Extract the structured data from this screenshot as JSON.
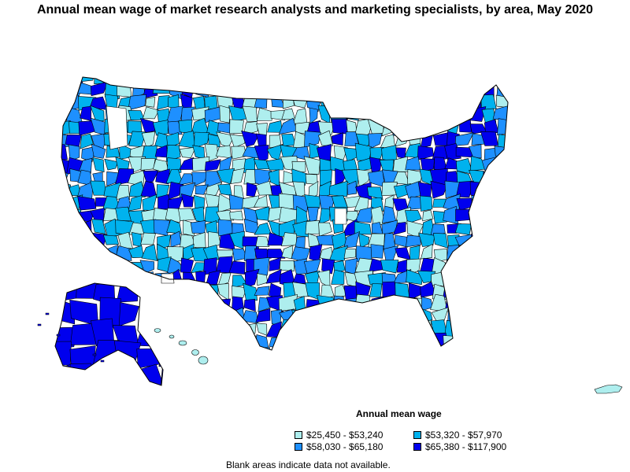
{
  "title": "Annual mean wage of market research analysts and marketing specialists, by area, May 2020",
  "legend": {
    "title": "Annual mean wage",
    "items": [
      {
        "label": "$25,450 - $53,240",
        "color": "#aeeeee"
      },
      {
        "label": "$53,320 - $57,970",
        "color": "#00b2ee"
      },
      {
        "label": "$58,030 - $65,180",
        "color": "#1e90ff"
      },
      {
        "label": "$65,380 - $117,900",
        "color": "#0000ee"
      }
    ]
  },
  "footnote": "Blank areas indicate data not available.",
  "colors": {
    "no_data": "#ffffff",
    "border": "#000000"
  }
}
